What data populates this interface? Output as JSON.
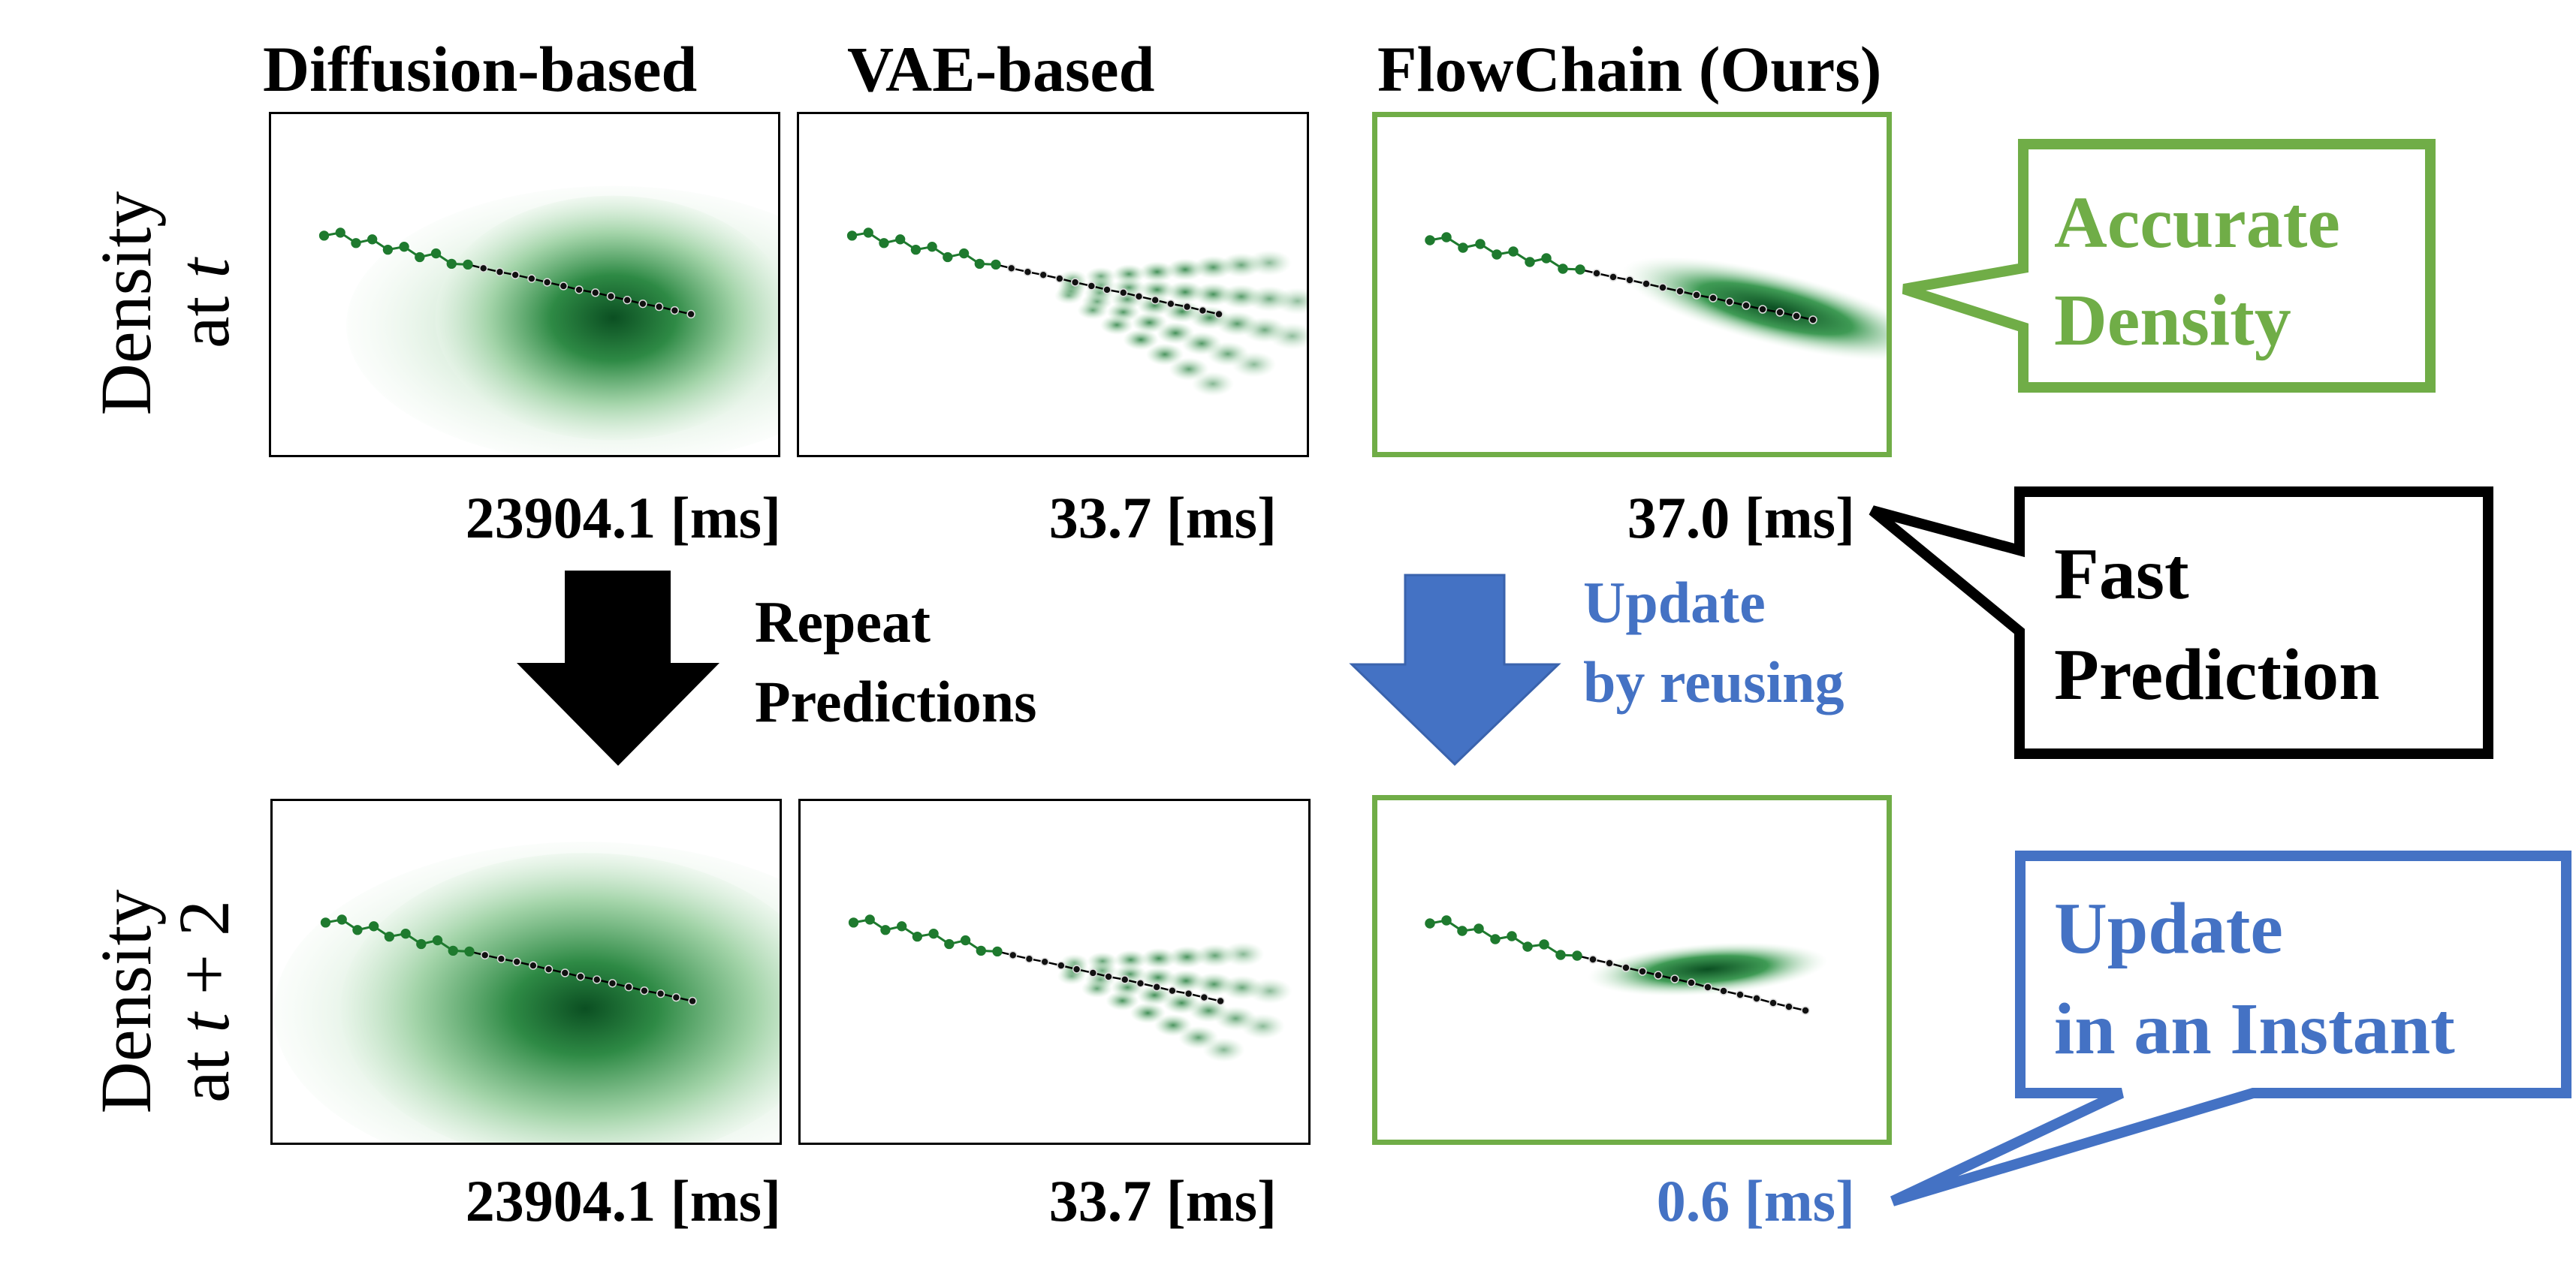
{
  "columns": {
    "diffusion": "Diffusion-based",
    "vae": "VAE-based",
    "flowchain": "FlowChain (Ours)"
  },
  "rows": {
    "top": {
      "line1": "Density",
      "line2": "at t"
    },
    "bottom": {
      "line1": "Density",
      "line2": "at t + 2"
    }
  },
  "times": {
    "top": {
      "diffusion": "23904.1 [ms]",
      "vae": "33.7 [ms]",
      "flowchain": "37.0 [ms]"
    },
    "bottom": {
      "diffusion": "23904.1 [ms]",
      "vae": "33.7 [ms]",
      "flowchain": "0.6 [ms]"
    }
  },
  "arrows": {
    "repeat": {
      "line1": "Repeat",
      "line2": "Predictions"
    },
    "update": {
      "line1": "Update",
      "line2": "by reusing"
    }
  },
  "callouts": {
    "accurate": {
      "line1": "Accurate",
      "line2": "Density"
    },
    "fast": {
      "line1": "Fast",
      "line2": "Prediction"
    },
    "instant": {
      "line1": "Update",
      "line2": "in an Instant"
    }
  },
  "colors": {
    "green_accent": "#70AD47",
    "blue_accent": "#4472C4",
    "density_green": "#0b5a25",
    "black": "#000000"
  },
  "icons": {
    "repeat_arrow": "down-arrow-black",
    "update_arrow": "down-arrow-blue"
  }
}
